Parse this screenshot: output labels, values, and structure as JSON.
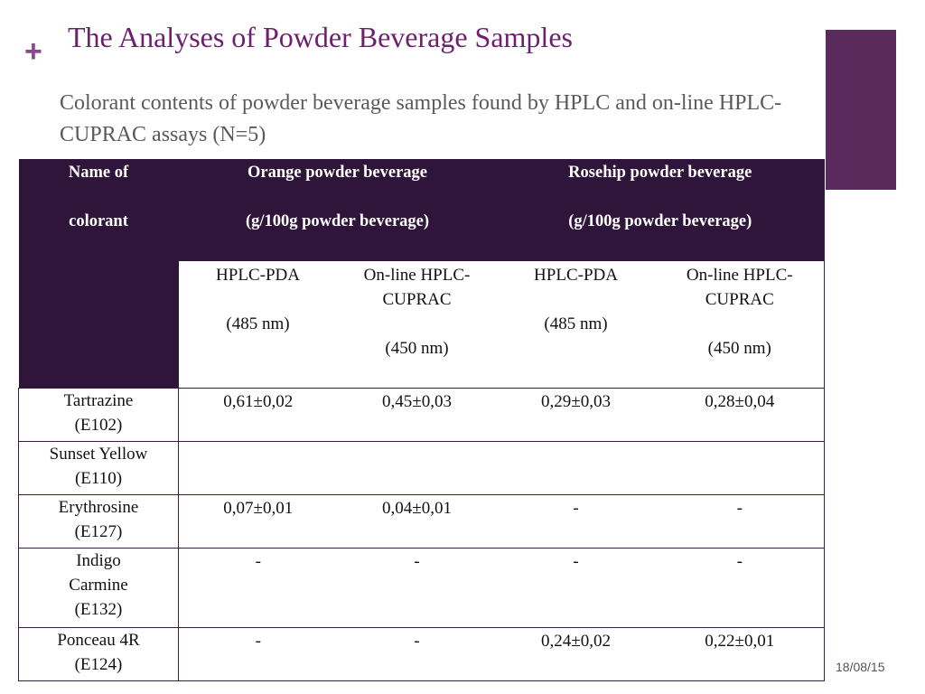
{
  "slide": {
    "title": "The Analyses of Powder Beverage Samples",
    "subtitle": "Colorant contents of powder beverage samples found by HPLC and on-line HPLC-CUPRAC assays (N=5)",
    "date": "18/08/15"
  },
  "table": {
    "name_header_line1": "Name of",
    "name_header_line2": "colorant",
    "groups": [
      {
        "line1": "Orange powder beverage",
        "line2": "(g/100g powder beverage)"
      },
      {
        "line1": "Rosehip powder beverage",
        "line2": "(g/100g powder beverage)"
      }
    ],
    "methods": [
      {
        "line1": "HPLC-PDA",
        "line2": "(485 nm)"
      },
      {
        "line1": "On-line HPLC-CUPRAC",
        "line2": "(450 nm)"
      },
      {
        "line1": "HPLC-PDA",
        "line2": "(485 nm)"
      },
      {
        "line1": "On-line HPLC-CUPRAC",
        "line2": "(450 nm)"
      }
    ],
    "rows": [
      {
        "name": "Tartrazine (E102)",
        "values": [
          "0,61±0,02",
          "0,45±0,03",
          "0,29±0,03",
          "0,28±0,04"
        ]
      },
      {
        "name": "Sunset Yellow (E110)",
        "values": [
          "",
          "",
          "",
          ""
        ]
      },
      {
        "name": "Erythrosine (E127)",
        "values": [
          "0,07±0,01",
          "0,04±0,01",
          "-",
          "-"
        ]
      },
      {
        "name": "Indigo Carmine (E132)",
        "values": [
          "-",
          "-",
          "-",
          "-"
        ]
      },
      {
        "name": "Ponceau 4R (E124)",
        "values": [
          "-",
          "-",
          "0,24±0,02",
          "0,22±0,01"
        ]
      }
    ]
  },
  "colors": {
    "title": "#6e1f6e",
    "header_bg": "#2e1539",
    "accent": "#5b2a5d"
  }
}
